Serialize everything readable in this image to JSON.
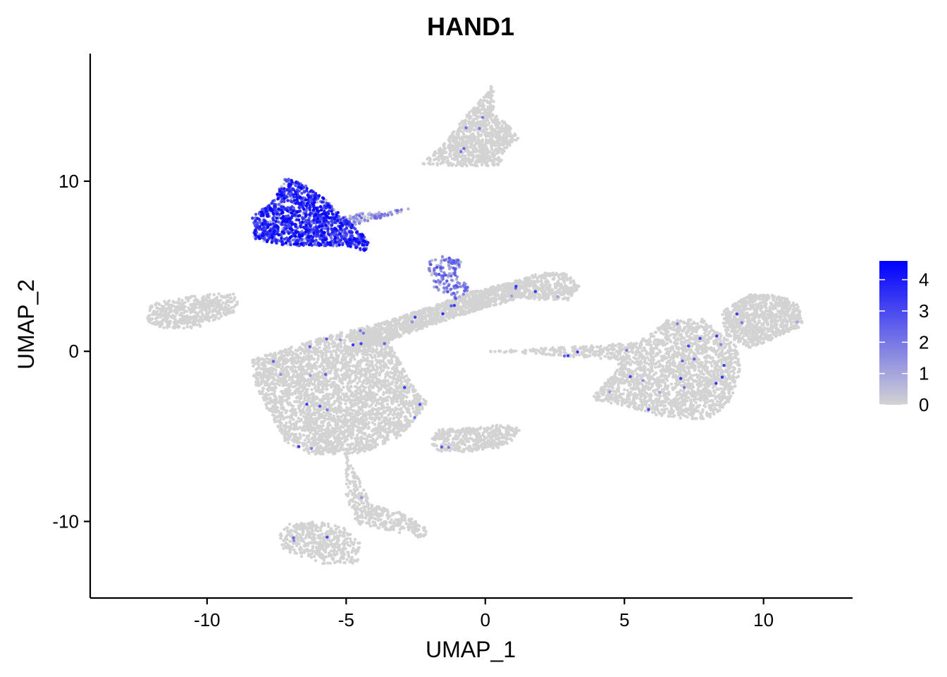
{
  "chart_data": {
    "type": "scatter",
    "title": "HAND1",
    "xlabel": "UMAP_1",
    "ylabel": "UMAP_2",
    "xlim": [
      -14.2,
      13.2
    ],
    "ylim": [
      -14.5,
      17.5
    ],
    "x_ticks": [
      -10,
      -5,
      0,
      5,
      10
    ],
    "y_ticks": [
      -10,
      0,
      10
    ],
    "x_tick_labels": [
      "-10",
      "-5",
      "0",
      "5",
      "10"
    ],
    "y_tick_labels": [
      "-10",
      "0",
      "10"
    ],
    "grid": false,
    "legend": {
      "placement": "right",
      "type": "colorbar",
      "min": 0,
      "max": 4.6,
      "ticks": [
        0,
        1,
        2,
        3,
        4
      ],
      "tick_labels": [
        "0",
        "1",
        "2",
        "3",
        "4"
      ],
      "low_color": "#d3d3d3",
      "high_color": "#0000ff"
    },
    "clusters": [
      {
        "label": "top-triangle",
        "polygon": [
          [
            0.3,
            15.8
          ],
          [
            -1.5,
            12.2
          ],
          [
            -2.3,
            11.0
          ],
          [
            -1.0,
            10.9
          ],
          [
            0.5,
            10.9
          ],
          [
            0.8,
            12.0
          ],
          [
            1.2,
            12.5
          ],
          [
            0.9,
            13.2
          ],
          [
            0.3,
            14.0
          ]
        ],
        "expr": 0,
        "n": 900
      },
      {
        "label": "hand1-high",
        "polygon": [
          [
            -7.2,
            10.2
          ],
          [
            -6.5,
            9.8
          ],
          [
            -5.8,
            9.0
          ],
          [
            -5.0,
            7.8
          ],
          [
            -4.2,
            6.5
          ],
          [
            -4.2,
            5.8
          ],
          [
            -5.0,
            6.2
          ],
          [
            -6.0,
            6.2
          ],
          [
            -7.2,
            6.2
          ],
          [
            -8.3,
            6.6
          ],
          [
            -8.4,
            7.9
          ],
          [
            -7.8,
            8.6
          ],
          [
            -7.5,
            9.2
          ]
        ],
        "expr": 3.3,
        "n": 1300
      },
      {
        "label": "hand1-tail",
        "polygon": [
          [
            -5.5,
            7.8
          ],
          [
            -4.5,
            8.1
          ],
          [
            -3.5,
            8.2
          ],
          [
            -2.7,
            8.5
          ],
          [
            -2.8,
            8.3
          ],
          [
            -3.8,
            7.8
          ],
          [
            -5.0,
            7.3
          ]
        ],
        "expr": 1.2,
        "n": 120
      },
      {
        "label": "left-blob",
        "polygon": [
          [
            -12.0,
            2.8
          ],
          [
            -10.0,
            3.4
          ],
          [
            -9.0,
            3.4
          ],
          [
            -8.8,
            2.5
          ],
          [
            -9.4,
            2.0
          ],
          [
            -10.3,
            1.4
          ],
          [
            -11.5,
            1.3
          ],
          [
            -12.2,
            1.8
          ]
        ],
        "expr": 0,
        "n": 500
      },
      {
        "label": "center-mass",
        "polygon": [
          [
            -8.4,
            -0.5
          ],
          [
            -7.5,
            0.0
          ],
          [
            -6.5,
            0.5
          ],
          [
            -5.0,
            1.2
          ],
          [
            -4.2,
            1.5
          ],
          [
            -3.5,
            0.6
          ],
          [
            -2.6,
            -2.0
          ],
          [
            -2.1,
            -3.0
          ],
          [
            -2.5,
            -4.0
          ],
          [
            -3.2,
            -5.2
          ],
          [
            -4.5,
            -6.0
          ],
          [
            -6.2,
            -6.1
          ],
          [
            -7.2,
            -5.3
          ],
          [
            -7.8,
            -3.5
          ],
          [
            -8.3,
            -1.8
          ]
        ],
        "expr": 0,
        "n": 3200
      },
      {
        "label": "diagonal-band",
        "polygon": [
          [
            -5.0,
            1.0
          ],
          [
            -3.5,
            1.8
          ],
          [
            -2.0,
            2.6
          ],
          [
            -0.5,
            3.5
          ],
          [
            0.8,
            4.0
          ],
          [
            1.5,
            4.1
          ],
          [
            1.0,
            3.0
          ],
          [
            -0.5,
            2.3
          ],
          [
            -2.0,
            1.5
          ],
          [
            -3.5,
            0.6
          ],
          [
            -4.5,
            0.2
          ]
        ],
        "expr": 0,
        "n": 1300
      },
      {
        "label": "upper-right-band",
        "polygon": [
          [
            0.8,
            4.0
          ],
          [
            2.0,
            4.6
          ],
          [
            2.9,
            4.6
          ],
          [
            3.4,
            3.8
          ],
          [
            3.0,
            3.0
          ],
          [
            2.0,
            3.0
          ],
          [
            1.0,
            3.2
          ]
        ],
        "expr": 0,
        "n": 400
      },
      {
        "label": "loop-structure",
        "polygon": [
          [
            -2.1,
            5.4
          ],
          [
            -1.5,
            5.6
          ],
          [
            -0.8,
            5.3
          ],
          [
            -1.0,
            4.5
          ],
          [
            -0.5,
            3.6
          ],
          [
            -1.0,
            3.1
          ],
          [
            -1.8,
            3.6
          ],
          [
            -2.0,
            4.5
          ]
        ],
        "expr": 1.6,
        "n": 150
      },
      {
        "label": "small-mid-blob",
        "polygon": [
          [
            -1.8,
            -4.6
          ],
          [
            -0.5,
            -4.5
          ],
          [
            0.5,
            -4.3
          ],
          [
            1.3,
            -4.5
          ],
          [
            0.8,
            -5.6
          ],
          [
            -0.5,
            -5.9
          ],
          [
            -1.7,
            -5.9
          ],
          [
            -2.0,
            -5.3
          ]
        ],
        "expr": 0,
        "n": 400
      },
      {
        "label": "lower-strand",
        "polygon": [
          [
            -5.0,
            -6.0
          ],
          [
            -4.4,
            -8.0
          ],
          [
            -4.1,
            -9.0
          ],
          [
            -3.0,
            -9.5
          ],
          [
            -2.0,
            -10.5
          ],
          [
            -2.2,
            -11.0
          ],
          [
            -3.5,
            -10.5
          ],
          [
            -4.6,
            -10.2
          ],
          [
            -5.0,
            -8.5
          ]
        ],
        "expr": 0,
        "n": 350
      },
      {
        "label": "lower-loop",
        "polygon": [
          [
            -7.3,
            -10.2
          ],
          [
            -6.0,
            -10.0
          ],
          [
            -5.0,
            -10.4
          ],
          [
            -4.5,
            -11.2
          ],
          [
            -4.6,
            -12.5
          ],
          [
            -5.8,
            -12.5
          ],
          [
            -7.2,
            -11.8
          ],
          [
            -7.4,
            -11.0
          ]
        ],
        "expr": 0,
        "n": 450
      },
      {
        "label": "right-large-blob",
        "polygon": [
          [
            -0.0,
            0.0
          ],
          [
            5.5,
            0.5
          ],
          [
            6.5,
            1.8
          ],
          [
            7.8,
            1.9
          ],
          [
            9.0,
            0.3
          ],
          [
            9.2,
            -1.0
          ],
          [
            8.8,
            -3.0
          ],
          [
            8.0,
            -4.0
          ],
          [
            6.5,
            -3.9
          ],
          [
            5.0,
            -3.2
          ],
          [
            3.8,
            -2.8
          ],
          [
            4.5,
            -1.5
          ],
          [
            4.8,
            -0.5
          ]
        ],
        "expr": 0,
        "n": 2200
      },
      {
        "label": "right-top-blob",
        "polygon": [
          [
            8.5,
            2.3
          ],
          [
            9.5,
            3.4
          ],
          [
            10.5,
            3.3
          ],
          [
            11.3,
            2.8
          ],
          [
            11.4,
            1.5
          ],
          [
            10.5,
            0.8
          ],
          [
            9.5,
            0.2
          ],
          [
            8.6,
            1.0
          ]
        ],
        "expr": 0,
        "n": 900
      }
    ]
  }
}
